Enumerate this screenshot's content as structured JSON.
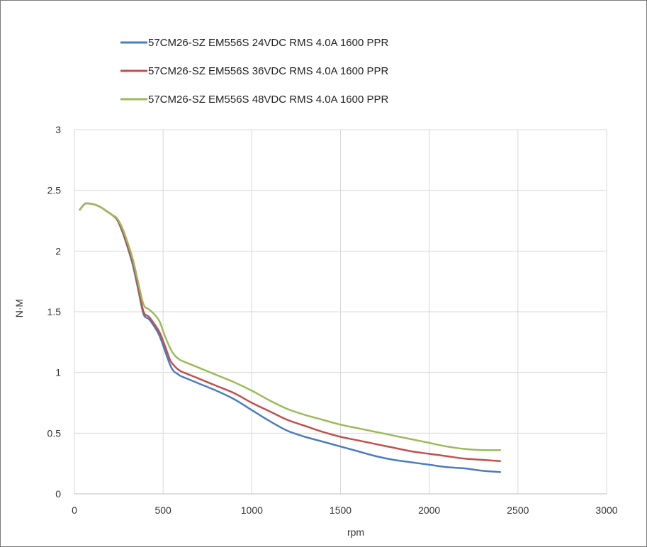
{
  "chart_data": {
    "type": "line",
    "title": "",
    "xlabel": "rpm",
    "ylabel": "N·M",
    "xlim": [
      0,
      3000
    ],
    "ylim": [
      0,
      3
    ],
    "xticks": [
      0,
      500,
      1000,
      1500,
      2000,
      2500,
      3000
    ],
    "yticks": [
      0,
      0.5,
      1,
      1.5,
      2,
      2.5,
      3
    ],
    "xtick_labels": [
      "0",
      "500",
      "1000",
      "1500",
      "2000",
      "2500",
      "3000"
    ],
    "ytick_labels": [
      "0",
      "0.5",
      "1",
      "1.5",
      "2",
      "2.5",
      "3"
    ],
    "grid": true,
    "legend_position": "top",
    "series": [
      {
        "name": "57CM26-SZ EM556S 24VDC RMS 4.0A 1600 PPR",
        "color": "#4a7cc0",
        "x": [
          30,
          60,
          90,
          120,
          150,
          180,
          210,
          240,
          270,
          300,
          330,
          360,
          390,
          420,
          450,
          480,
          510,
          540,
          560,
          580,
          600,
          650,
          700,
          800,
          900,
          1000,
          1100,
          1200,
          1300,
          1400,
          1500,
          1600,
          1700,
          1800,
          1900,
          2000,
          2100,
          2200,
          2300,
          2400
        ],
        "y": [
          2.34,
          2.39,
          2.39,
          2.38,
          2.36,
          2.33,
          2.3,
          2.26,
          2.16,
          2.03,
          1.88,
          1.68,
          1.48,
          1.44,
          1.38,
          1.3,
          1.18,
          1.06,
          1.01,
          0.99,
          0.97,
          0.94,
          0.91,
          0.85,
          0.78,
          0.69,
          0.6,
          0.52,
          0.47,
          0.43,
          0.39,
          0.35,
          0.31,
          0.28,
          0.26,
          0.24,
          0.22,
          0.21,
          0.19,
          0.18
        ]
      },
      {
        "name": "57CM26-SZ EM556S 36VDC RMS 4.0A 1600 PPR",
        "color": "#c0504d",
        "x": [
          30,
          60,
          90,
          120,
          150,
          180,
          210,
          240,
          270,
          300,
          330,
          360,
          390,
          420,
          450,
          480,
          510,
          540,
          560,
          580,
          600,
          650,
          700,
          800,
          900,
          1000,
          1100,
          1200,
          1300,
          1400,
          1500,
          1600,
          1700,
          1800,
          1900,
          2000,
          2100,
          2200,
          2300,
          2400
        ],
        "y": [
          2.34,
          2.39,
          2.39,
          2.38,
          2.36,
          2.33,
          2.3,
          2.26,
          2.17,
          2.04,
          1.9,
          1.7,
          1.5,
          1.46,
          1.4,
          1.33,
          1.22,
          1.1,
          1.06,
          1.03,
          1.01,
          0.98,
          0.95,
          0.89,
          0.83,
          0.75,
          0.68,
          0.61,
          0.56,
          0.51,
          0.47,
          0.44,
          0.41,
          0.38,
          0.35,
          0.33,
          0.31,
          0.29,
          0.28,
          0.27
        ]
      },
      {
        "name": "57CM26-SZ EM556S 48VDC RMS 4.0A 1600 PPR",
        "color": "#9bbb59",
        "x": [
          30,
          60,
          90,
          120,
          150,
          180,
          210,
          240,
          270,
          300,
          330,
          360,
          390,
          420,
          450,
          480,
          510,
          540,
          560,
          580,
          600,
          650,
          700,
          800,
          900,
          1000,
          1100,
          1200,
          1300,
          1400,
          1500,
          1600,
          1700,
          1800,
          1900,
          2000,
          2100,
          2200,
          2300,
          2400
        ],
        "y": [
          2.34,
          2.39,
          2.39,
          2.38,
          2.36,
          2.33,
          2.3,
          2.27,
          2.19,
          2.07,
          1.93,
          1.74,
          1.56,
          1.52,
          1.48,
          1.42,
          1.3,
          1.2,
          1.15,
          1.12,
          1.1,
          1.07,
          1.04,
          0.98,
          0.92,
          0.85,
          0.77,
          0.7,
          0.65,
          0.61,
          0.57,
          0.54,
          0.51,
          0.48,
          0.45,
          0.42,
          0.39,
          0.37,
          0.36,
          0.36
        ]
      }
    ]
  }
}
